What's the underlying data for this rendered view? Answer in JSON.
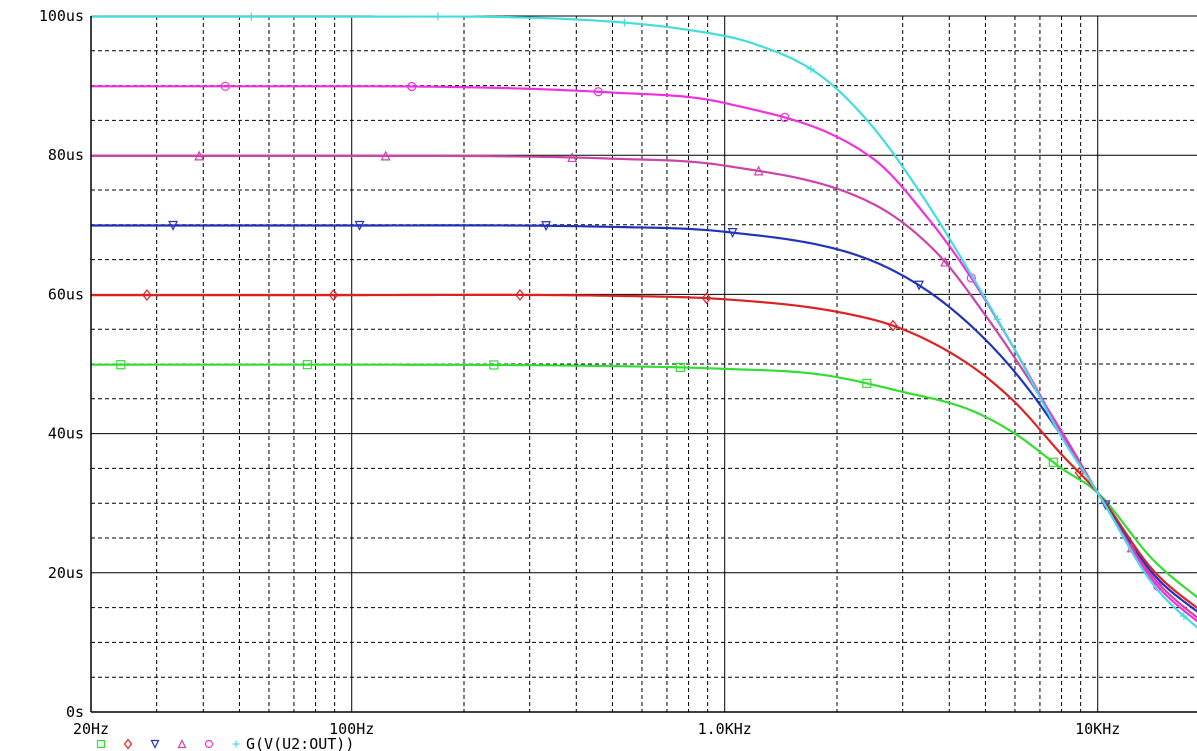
{
  "chart_data": {
    "type": "line",
    "x_scale": "log",
    "xlim": [
      20,
      20000
    ],
    "ylim": [
      0,
      100
    ],
    "y_unit": "us",
    "grid": true,
    "x_ticks": [
      {
        "value": 20,
        "label": "20Hz"
      },
      {
        "value": 100,
        "label": "100Hz"
      },
      {
        "value": 1000,
        "label": "1.0KHz"
      },
      {
        "value": 10000,
        "label": "10KHz"
      }
    ],
    "y_ticks": [
      {
        "value": 0,
        "label": "0s"
      },
      {
        "value": 20,
        "label": "20us"
      },
      {
        "value": 40,
        "label": "40us"
      },
      {
        "value": 60,
        "label": "60us"
      },
      {
        "value": 80,
        "label": "80us"
      },
      {
        "value": 100,
        "label": "100us"
      }
    ],
    "series": [
      {
        "color": "#33dd33",
        "marker": "square",
        "x": [
          20,
          100,
          500,
          1000,
          1800,
          3000,
          4500,
          6000,
          8000,
          10000,
          14000,
          20000
        ],
        "y": [
          49.9,
          49.9,
          49.7,
          49.3,
          48.5,
          46.0,
          43.5,
          40.0,
          35.0,
          31.5,
          22.0,
          15.0
        ]
      },
      {
        "color": "#dd2222",
        "marker": "diamond",
        "x": [
          20,
          100,
          500,
          1000,
          2000,
          3000,
          4500,
          6000,
          8000,
          10000,
          14000,
          20000
        ],
        "y": [
          59.9,
          59.9,
          59.8,
          59.3,
          57.5,
          55.0,
          50.0,
          44.5,
          37.0,
          31.5,
          20.5,
          13.5
        ]
      },
      {
        "color": "#2233bb",
        "marker": "triangle-down",
        "x": [
          20,
          100,
          500,
          1000,
          2300,
          3500,
          5000,
          6500,
          8500,
          10000,
          14000,
          20000
        ],
        "y": [
          69.9,
          69.9,
          69.7,
          69.0,
          65.5,
          60.5,
          53.5,
          46.5,
          37.5,
          31.5,
          20.0,
          13.0
        ]
      },
      {
        "color": "#cc44aa",
        "marker": "triangle-up",
        "x": [
          20,
          100,
          500,
          1000,
          2500,
          3700,
          5000,
          6500,
          8500,
          10000,
          14000,
          20000
        ],
        "y": [
          79.9,
          79.9,
          79.5,
          78.5,
          73.0,
          66.0,
          57.0,
          48.0,
          38.0,
          31.5,
          19.5,
          12.0
        ]
      },
      {
        "color": "#ee33dd",
        "marker": "circle",
        "x": [
          20,
          100,
          500,
          1000,
          2500,
          3500,
          4500,
          6000,
          8000,
          10000,
          14000,
          20000
        ],
        "y": [
          89.9,
          89.9,
          89.0,
          87.5,
          79.5,
          71.0,
          63.0,
          52.0,
          40.0,
          31.5,
          19.0,
          11.5
        ]
      },
      {
        "color": "#44dddd",
        "marker": "plus",
        "x": [
          20,
          100,
          400,
          800,
          1200,
          1800,
          2500,
          3500,
          4500,
          6000,
          8000,
          10000,
          14000,
          20000
        ],
        "y": [
          99.9,
          99.9,
          99.5,
          98.0,
          96.0,
          91.5,
          84.0,
          73.0,
          63.5,
          52.0,
          39.5,
          31.5,
          18.5,
          10.5
        ]
      }
    ],
    "legend": {
      "position": "bottom-left",
      "label": "G(V(U2:OUT))"
    }
  }
}
